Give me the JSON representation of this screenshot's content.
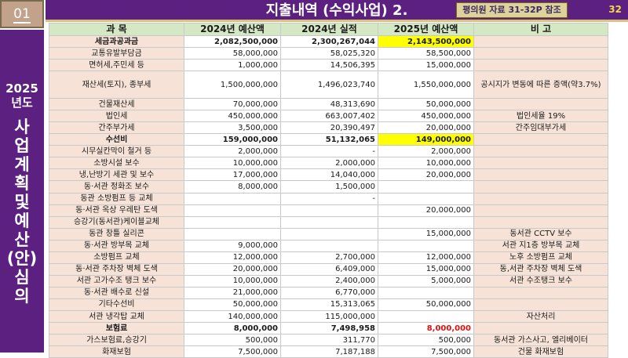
{
  "header": {
    "page_label": "01",
    "title": "지출내역 (수익사업)  2.",
    "reference": "평의원 자료 31-32P 참조",
    "slide_number": "32"
  },
  "sidebar": {
    "year": "2025",
    "year_suffix": "년도",
    "vertical_text": [
      "사",
      "업",
      "계",
      "획",
      "및",
      "예",
      "산",
      "(안)",
      "심",
      "의"
    ]
  },
  "colors": {
    "header_bg": "#5b2080",
    "table_header_bg": "#d4e8c4",
    "category_bg": "#f6e2d6",
    "highlight": "#ffff00",
    "red_text": "#e0100c"
  },
  "table": {
    "columns": [
      "과   목",
      "2024년 예산액",
      "2024년 실적",
      "2025년 예산액",
      "비      고"
    ],
    "rows": [
      {
        "item": "세금과공과금",
        "b2024": "2,082,500,000",
        "a2024": "2,300,267,044",
        "b2025": "2,143,500,000",
        "note": "",
        "bold": true,
        "hl": true
      },
      {
        "item": "교통유발부담금",
        "b2024": "58,000,000",
        "a2024": "58,025,320",
        "b2025": "58,500,000",
        "note": ""
      },
      {
        "item": "면허세,주민세 등",
        "b2024": "1,000,000",
        "a2024": "14,506,395",
        "b2025": "15,000,000",
        "note": ""
      },
      {
        "item": "재산세(토지), 종부세",
        "b2024": "1,500,000,000",
        "a2024": "1,496,023,740",
        "b2025": "1,550,000,000",
        "note": "공시지가 변동에 따른 증액(약3.7%)",
        "tall": true
      },
      {
        "item": "건물재산세",
        "b2024": "70,000,000",
        "a2024": "48,313,690",
        "b2025": "50,000,000",
        "note": ""
      },
      {
        "item": "법인세",
        "b2024": "450,000,000",
        "a2024": "663,007,402",
        "b2025": "450,000,000",
        "note": "법인세율 19%"
      },
      {
        "item": "간주부가세",
        "b2024": "3,500,000",
        "a2024": "20,390,497",
        "b2025": "20,000,000",
        "note": "간주임대부가세"
      },
      {
        "item": "수선비",
        "b2024": "159,000,000",
        "a2024": "51,132,065",
        "b2025": "149,000,000",
        "note": "",
        "bold": true,
        "hl": true
      },
      {
        "item": "시무실칸막이 철거 등",
        "b2024": "2,000,000",
        "a2024": "-",
        "b2025": "2,000,000",
        "note": ""
      },
      {
        "item": "소방시설 보수",
        "b2024": "10,000,000",
        "a2024": "2,000,000",
        "b2025": "10,000,000",
        "note": ""
      },
      {
        "item": "냉,난방기 세관 및 보수",
        "b2024": "17,000,000",
        "a2024": "14,040,000",
        "b2025": "20,000,000",
        "note": ""
      },
      {
        "item": "동·서관 정화조 보수",
        "b2024": "8,000,000",
        "a2024": "1,500,000",
        "b2025": "",
        "note": ""
      },
      {
        "item": "동관 소방펌프 등 교체",
        "b2024": "",
        "a2024": "-",
        "b2025": "",
        "note": ""
      },
      {
        "item": "동·서관 옥상 우레탄 도색",
        "b2024": "",
        "a2024": "",
        "b2025": "20,000,000",
        "note": ""
      },
      {
        "item": "승강기(동서관)케이블교체",
        "b2024": "",
        "a2024": "",
        "b2025": "",
        "note": ""
      },
      {
        "item": "동관 창틀 실리콘",
        "b2024": "",
        "a2024": "",
        "b2025": "15,000,000",
        "note": "동서관 CCTV 보수"
      },
      {
        "item": "동·서관 방부목 교체",
        "b2024": "9,000,000",
        "a2024": "",
        "b2025": "",
        "note": "서관 지1층 방부목 교체"
      },
      {
        "item": "소방펌프 교체",
        "b2024": "12,000,000",
        "a2024": "2,700,000",
        "b2025": "12,000,000",
        "note": "노후 소방펌프 교체"
      },
      {
        "item": "동·서관 주차장 벽체 도색",
        "b2024": "20,000,000",
        "a2024": "6,409,000",
        "b2025": "15,000,000",
        "note": "동,서관 주차장 벽체 도색"
      },
      {
        "item": "서관 고가수조 탱크 보수",
        "b2024": "10,000,000",
        "a2024": "2,400,000",
        "b2025": "5,000,000",
        "note": "서관 수조탱크 보수"
      },
      {
        "item": "동·서관 배수로 신설",
        "b2024": "21,000,000",
        "a2024": "6,770,000",
        "b2025": "",
        "note": ""
      },
      {
        "item": "기타수선비",
        "b2024": "50,000,000",
        "a2024": "15,313,065",
        "b2025": "50,000,000",
        "note": ""
      },
      {
        "item": "서관 냉각탑 교체",
        "b2024": "140,000,000",
        "a2024": "115,000,000",
        "b2025": "",
        "note": "자산처리"
      },
      {
        "item": "보험료",
        "b2024": "8,000,000",
        "a2024": "7,498,958",
        "b2025": "8,000,000",
        "note": "",
        "bold": true,
        "red": true
      },
      {
        "item": "가스보험료,승강기",
        "b2024": "500,000",
        "a2024": "311,770",
        "b2025": "500,000",
        "note": "동서관 가스사고, 엘리베이터"
      },
      {
        "item": "화재보험",
        "b2024": "7,500,000",
        "a2024": "7,187,188",
        "b2025": "7,500,000",
        "note": "건물 화재보험"
      }
    ]
  }
}
